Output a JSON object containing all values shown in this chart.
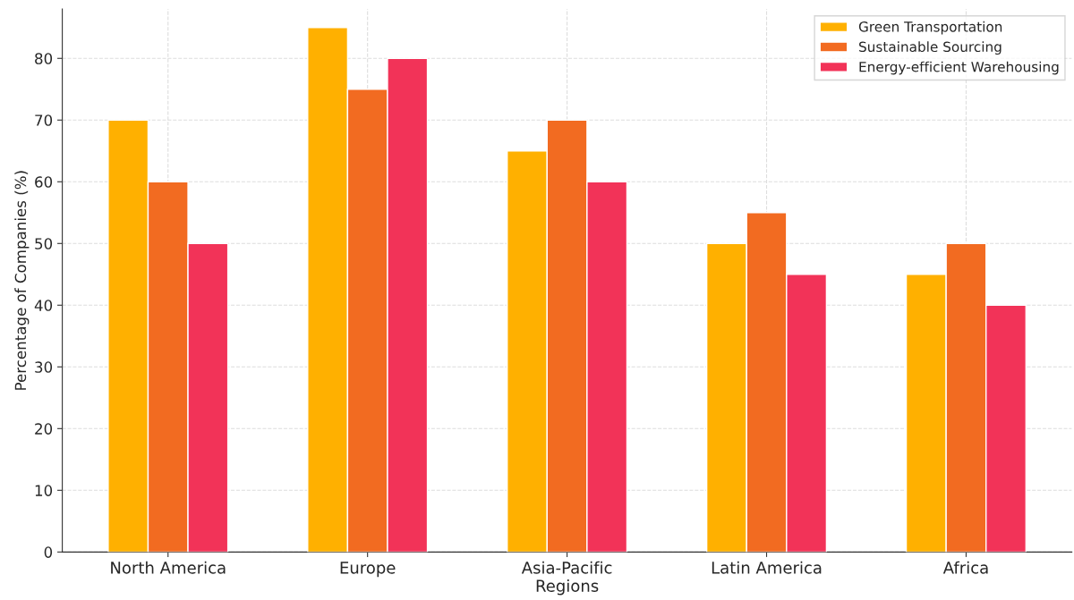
{
  "chart_data": {
    "type": "bar",
    "xlabel": "Regions",
    "ylabel": "Percentage of Companies (%)",
    "categories": [
      "North America",
      "Europe",
      "Asia-Pacific",
      "Latin America",
      "Africa"
    ],
    "series": [
      {
        "name": "Green Transportation",
        "color": "#ffb000",
        "values": [
          70,
          85,
          65,
          50,
          45
        ]
      },
      {
        "name": "Sustainable Sourcing",
        "color": "#f26b21",
        "values": [
          60,
          75,
          70,
          55,
          50
        ]
      },
      {
        "name": "Energy-efficient Warehousing",
        "color": "#f23358",
        "values": [
          50,
          80,
          60,
          45,
          40
        ]
      }
    ],
    "ylim": [
      0,
      88
    ],
    "yticks": [
      0,
      10,
      20,
      30,
      40,
      50,
      60,
      70,
      80
    ],
    "grid": true,
    "legend": "top right"
  }
}
